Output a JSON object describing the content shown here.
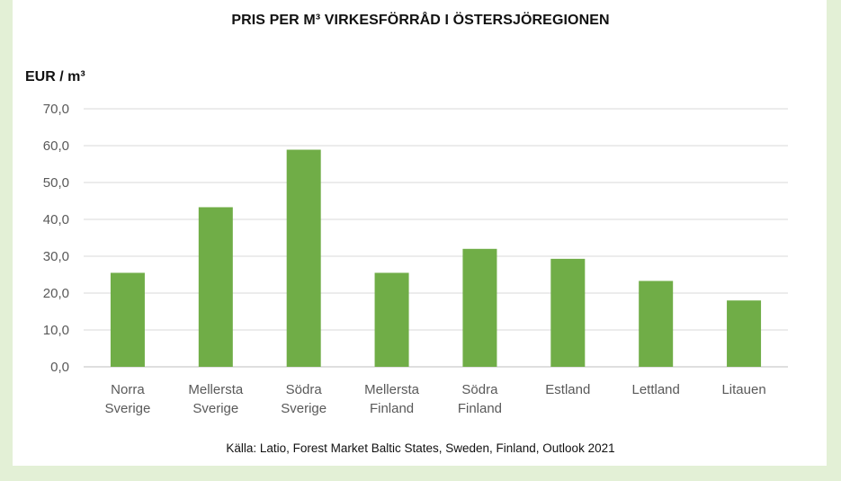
{
  "chart_data": {
    "type": "bar",
    "title": "PRIS PER M³ VIRKESFÖRRÅD I ÖSTERSJÖREGIONEN",
    "ylabel": "EUR / m³",
    "xlabel": "",
    "categories": [
      [
        "Norra",
        "Sverige"
      ],
      [
        "Mellersta",
        "Sverige"
      ],
      [
        "Södra",
        "Sverige"
      ],
      [
        "Mellersta",
        "Finland"
      ],
      [
        "Södra",
        "Finland"
      ],
      [
        "Estland"
      ],
      [
        "Lettland"
      ],
      [
        "Litauen"
      ]
    ],
    "values": [
      25.5,
      43.3,
      58.9,
      25.5,
      32.0,
      29.3,
      23.3,
      18.0
    ],
    "ylim": [
      0,
      70
    ],
    "yticks": [
      "0,0",
      "10,0",
      "20,0",
      "30,0",
      "40,0",
      "50,0",
      "60,0",
      "70,0"
    ],
    "grid": true,
    "bar_color": "#70ad47",
    "source": "Källa: Latio, Forest Market Baltic States, Sweden, Finland, Outlook 2021"
  }
}
